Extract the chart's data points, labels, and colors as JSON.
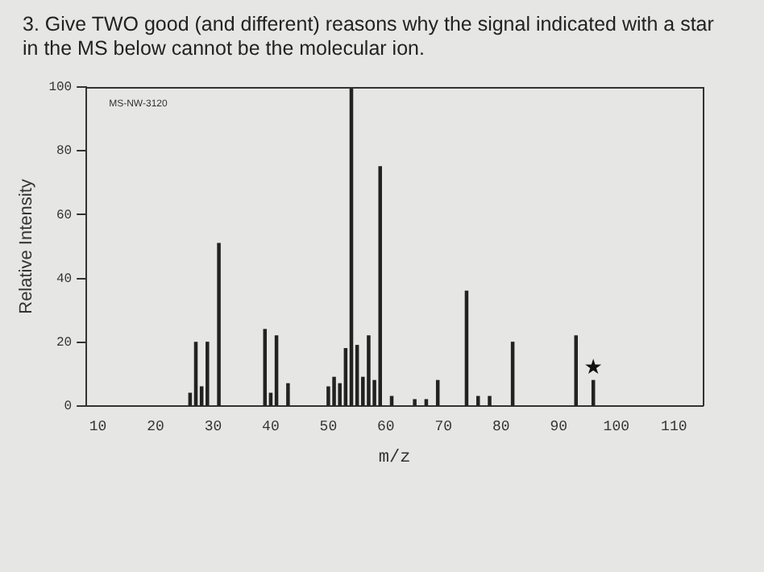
{
  "chart_data": {
    "type": "bar",
    "title": "3. Give TWO good (and different) reasons why the signal indicated with a star in the MS below cannot be the molecular ion.",
    "xlabel": "m/z",
    "ylabel": "Relative Intensity",
    "x": [
      26,
      27,
      28,
      29,
      31,
      39,
      40,
      41,
      43,
      50,
      51,
      52,
      53,
      54,
      55,
      56,
      57,
      58,
      59,
      61,
      65,
      67,
      69,
      74,
      76,
      78,
      82,
      93,
      96
    ],
    "values": [
      4,
      20,
      6,
      20,
      51,
      24,
      4,
      22,
      7,
      6,
      9,
      7,
      18,
      100,
      19,
      9,
      22,
      8,
      75,
      3,
      2,
      2,
      8,
      36,
      3,
      3,
      20,
      22,
      8
    ],
    "color": "#222222",
    "xlim": [
      8,
      115
    ],
    "xticks": [
      10,
      20,
      30,
      40,
      50,
      60,
      70,
      80,
      90,
      100,
      110
    ],
    "ylim": [
      0,
      100
    ],
    "yticks": [
      0,
      20,
      40,
      60,
      80,
      100
    ],
    "grid": false,
    "legend": false,
    "annotations": [
      "MS-NW-3120",
      {
        "text": "★",
        "x": 96,
        "y": 8
      }
    ]
  }
}
